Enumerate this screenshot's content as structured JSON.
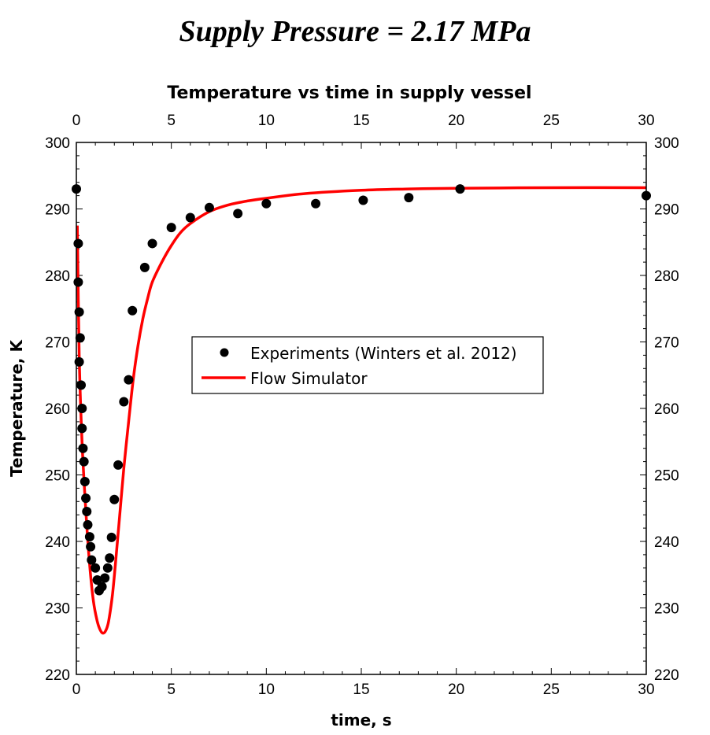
{
  "page": {
    "supertitle": "Supply Pressure = 2.17 MPa"
  },
  "chart_data": {
    "type": "scatter",
    "title": "Temperature vs time in supply vessel",
    "xlabel": "time, s",
    "ylabel": "Temperature, K",
    "xlim": [
      0,
      30
    ],
    "ylim": [
      220,
      300
    ],
    "x_ticks": [
      0,
      5,
      10,
      15,
      20,
      25,
      30
    ],
    "y_ticks": [
      220,
      230,
      240,
      250,
      260,
      270,
      280,
      290,
      300
    ],
    "grid": false,
    "legend_position": "center",
    "series": [
      {
        "name": "Experiments (Winters et al. 2012)",
        "kind": "markers",
        "color": "#000000",
        "x": [
          0.0,
          0.1,
          0.1,
          0.15,
          0.2,
          0.15,
          0.25,
          0.3,
          0.3,
          0.35,
          0.4,
          0.45,
          0.5,
          0.55,
          0.6,
          0.7,
          0.75,
          0.8,
          1.0,
          1.1,
          1.2,
          1.35,
          1.5,
          1.65,
          1.75,
          1.85,
          2.0,
          2.2,
          2.5,
          2.75,
          2.95,
          3.6,
          4.0,
          5.0,
          6.0,
          7.0,
          8.5,
          10.0,
          12.6,
          15.1,
          17.5,
          20.2,
          30.0
        ],
        "y": [
          293.0,
          284.8,
          279.0,
          274.5,
          270.6,
          267.0,
          263.5,
          260.0,
          257.0,
          254.0,
          252.0,
          249.0,
          246.5,
          244.5,
          242.5,
          240.7,
          239.2,
          237.2,
          236.0,
          234.2,
          232.6,
          233.2,
          234.5,
          236.0,
          237.5,
          240.6,
          246.3,
          251.5,
          261.0,
          264.3,
          274.7,
          281.2,
          284.8,
          287.2,
          288.7,
          290.2,
          289.3,
          290.8,
          290.8,
          291.3,
          291.7,
          293.0,
          292.0
        ]
      },
      {
        "name": "Flow Simulator",
        "kind": "line",
        "color": "#ff0000",
        "x": [
          0.05,
          0.15,
          0.3,
          0.5,
          0.7,
          0.9,
          1.1,
          1.25,
          1.4,
          1.55,
          1.7,
          1.9,
          2.1,
          2.3,
          2.5,
          2.75,
          3.0,
          3.25,
          3.5,
          3.75,
          4.0,
          4.5,
          5.0,
          5.5,
          6.0,
          7.0,
          8.0,
          9.0,
          10.0,
          12.0,
          15.0,
          17.5,
          20.0,
          25.0,
          30.0
        ],
        "y": [
          287.5,
          268.0,
          255.0,
          244.5,
          236.5,
          231.0,
          228.0,
          226.7,
          226.2,
          226.6,
          228.0,
          232.0,
          238.0,
          244.5,
          251.0,
          258.0,
          264.5,
          269.5,
          273.5,
          276.5,
          279.0,
          282.0,
          284.5,
          286.5,
          287.8,
          289.6,
          290.6,
          291.2,
          291.6,
          292.3,
          292.8,
          293.0,
          293.1,
          293.2,
          293.2
        ]
      }
    ]
  }
}
